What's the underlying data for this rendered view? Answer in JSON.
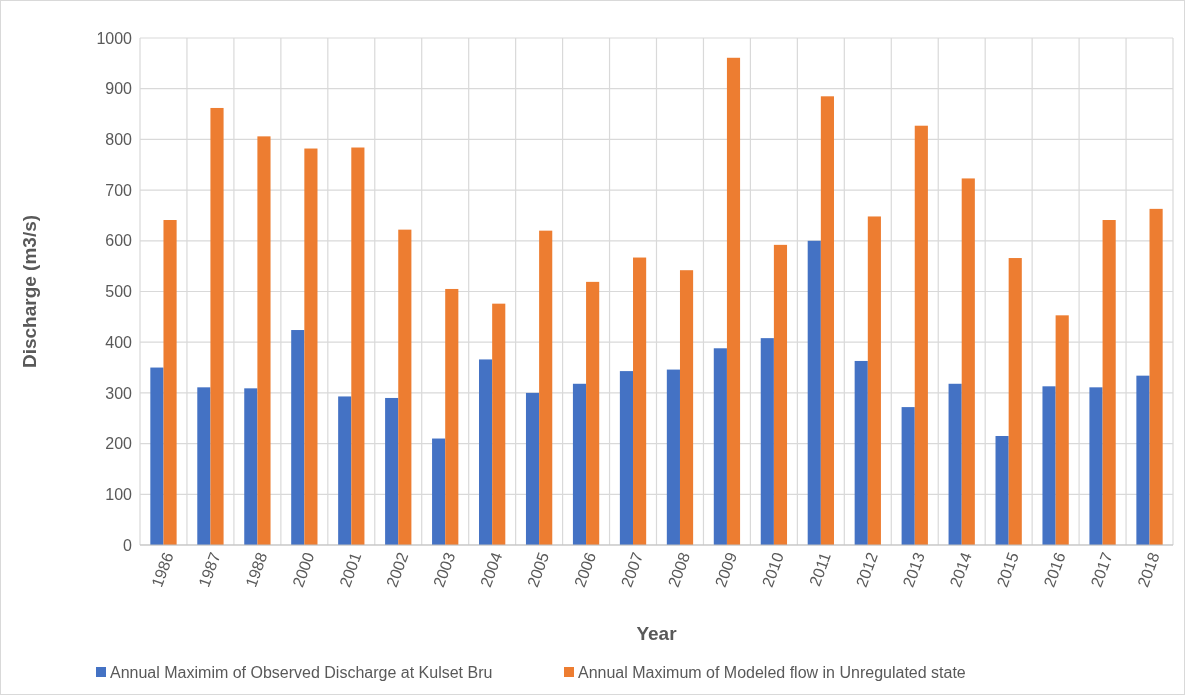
{
  "chart_data": {
    "type": "bar",
    "xlabel": "Year",
    "ylabel": "Discharge (m3/s)",
    "categories": [
      "1986",
      "1987",
      "1988",
      "2000",
      "2001",
      "2002",
      "2003",
      "2004",
      "2005",
      "2006",
      "2007",
      "2008",
      "2009",
      "2010",
      "2011",
      "2012",
      "2013",
      "2014",
      "2015",
      "2016",
      "2017",
      "2018"
    ],
    "series": [
      {
        "name": "Annual Maximim of Observed Discharge at Kulset Bru",
        "color": "#4472c4",
        "values": [
          350,
          311,
          309,
          424,
          293,
          290,
          210,
          366,
          300,
          318,
          343,
          346,
          388,
          408,
          600,
          363,
          272,
          318,
          215,
          313,
          311,
          334
        ]
      },
      {
        "name": "Annual Maximum of Modeled flow in Unregulated state",
        "color": "#ed7d31",
        "values": [
          641,
          862,
          806,
          782,
          784,
          622,
          505,
          476,
          620,
          519,
          567,
          542,
          961,
          592,
          885,
          648,
          827,
          723,
          566,
          453,
          641,
          663
        ]
      }
    ],
    "ylim": [
      0,
      1000
    ],
    "yticks": [
      0,
      100,
      200,
      300,
      400,
      500,
      600,
      700,
      800,
      900,
      1000
    ],
    "grid": true,
    "legend": "bottom"
  }
}
